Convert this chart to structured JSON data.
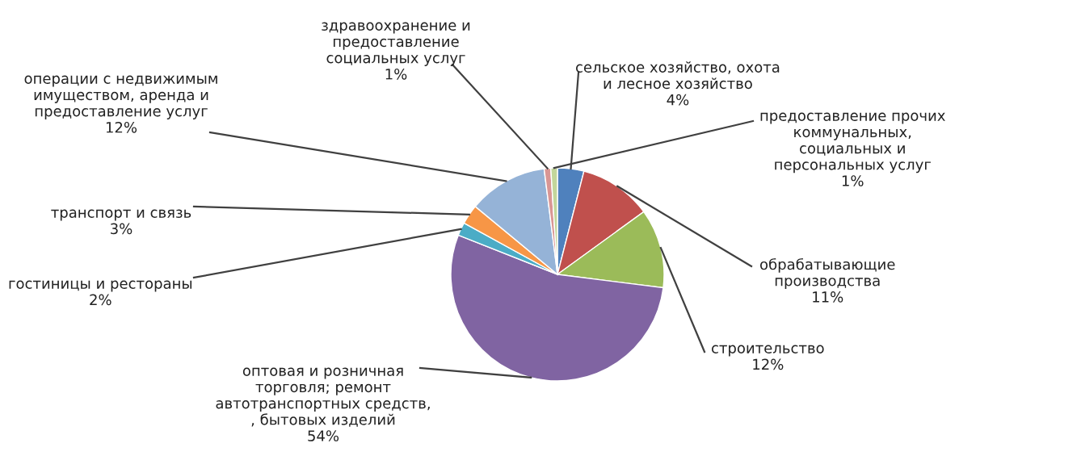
{
  "chart_data": {
    "type": "pie",
    "categories": [
      "сельское хозяйство, охота\nи лесное хозяйство",
      "обрабатывающие\nпроизводства",
      "строительство",
      "оптовая и розничная\nторговля; ремонт\nавтотранспортных средств,\n, бытовых изделий",
      "гостиницы и рестораны",
      "транспорт и связь",
      "операции с недвижимым\nимуществом, аренда и\nпредоставление услуг",
      "здравоохранение и\nпредоставление\nсоциальных услуг",
      "предоставление прочих\nкоммунальных,\nсоциальных и\nперсональных услуг"
    ],
    "values": [
      4,
      11,
      12,
      54,
      2,
      3,
      12,
      1,
      1
    ],
    "value_labels": [
      "4%",
      "11%",
      "12%",
      "54%",
      "2%",
      "3%",
      "12%",
      "1%",
      "1%"
    ],
    "colors": [
      "#4f81bd",
      "#c0504d",
      "#9bbb59",
      "#8064a2",
      "#4bacc6",
      "#f79646",
      "#95b3d7",
      "#d99694",
      "#c3d69b"
    ],
    "legend": false
  }
}
